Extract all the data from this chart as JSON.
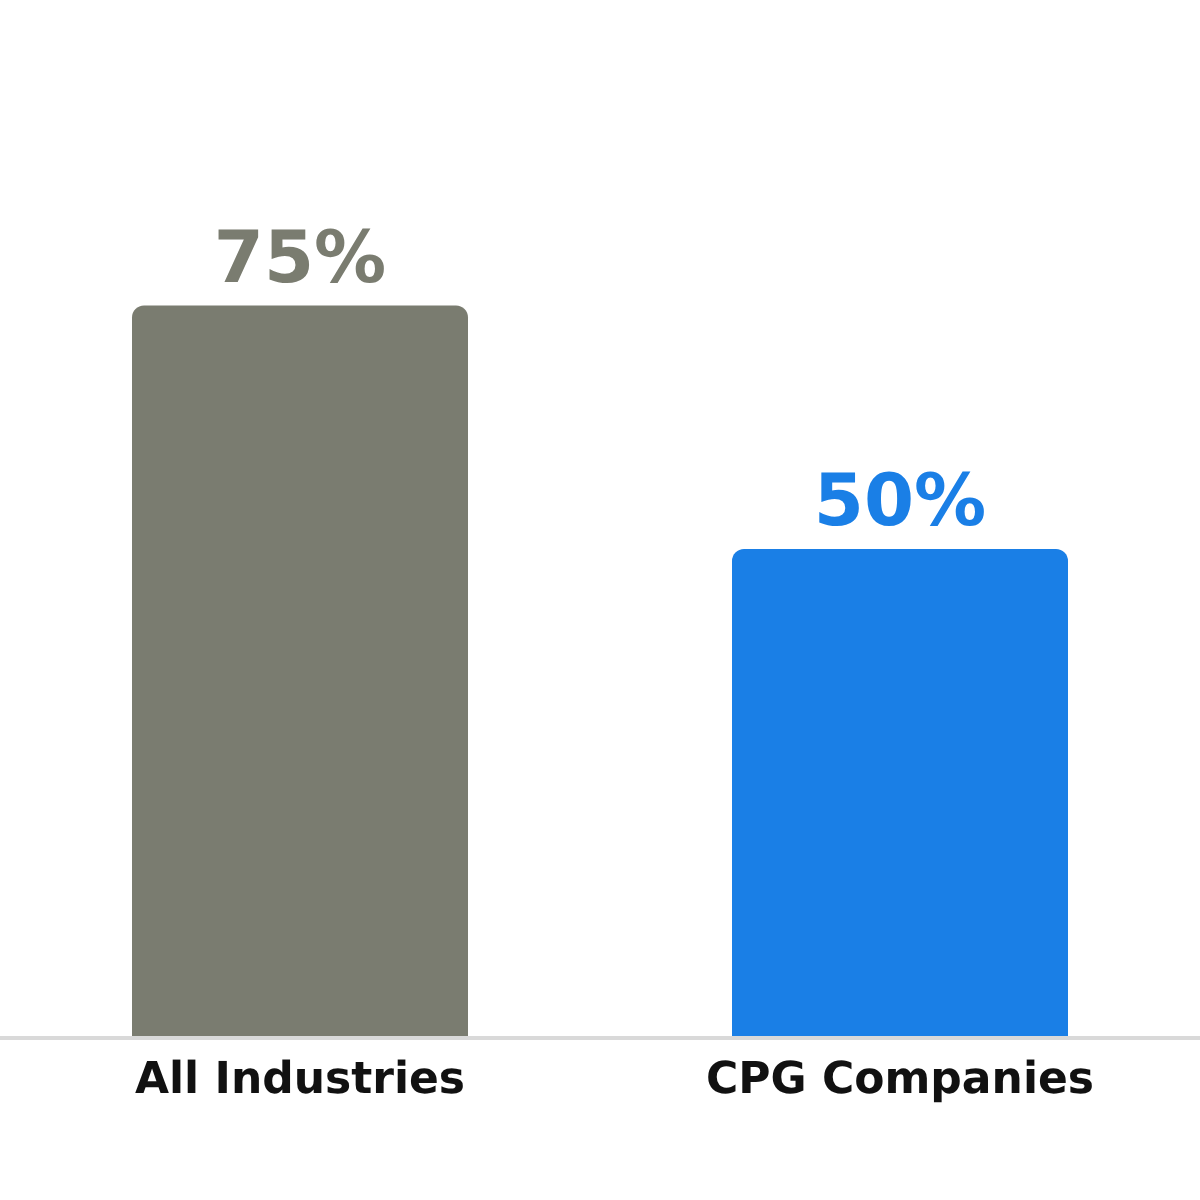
{
  "chart_data": {
    "type": "bar",
    "categories": [
      "All Industries",
      "CPG Companies"
    ],
    "values": [
      75,
      50
    ],
    "colors": [
      "#7a7c70",
      "#1a7fe6"
    ],
    "value_labels": [
      "75%",
      "50%"
    ],
    "grid": false,
    "legend": false
  }
}
